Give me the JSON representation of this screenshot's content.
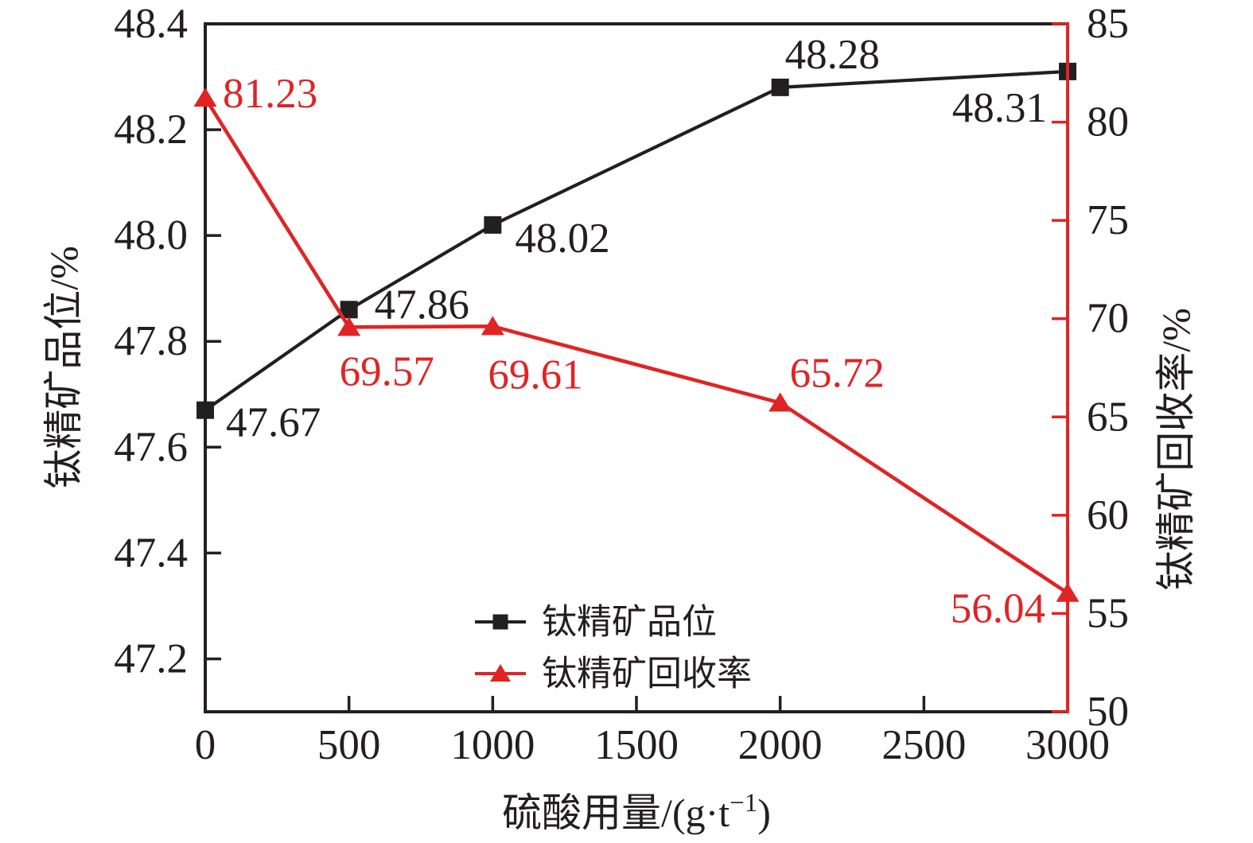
{
  "chart_data": {
    "type": "line",
    "title": "",
    "xlabel_parts": {
      "pre": "硫酸用量/(g·t",
      "sup": "−1",
      "post": ")"
    },
    "ylabel_left": "钛精矿品位/%",
    "ylabel_right": "钛精矿回收率/%",
    "x_axis": {
      "range": [
        0,
        3000
      ],
      "tick_values": [
        0,
        500,
        1000,
        1500,
        2000,
        2500,
        3000
      ],
      "tick_labels": [
        "0",
        "500",
        "1000",
        "1500",
        "2000",
        "2500",
        "3000"
      ]
    },
    "left_axis": {
      "range": [
        47.1,
        48.4
      ],
      "tick_values": [
        48.4,
        48.2,
        48.0,
        47.8,
        47.6,
        47.4,
        47.2
      ],
      "tick_labels": [
        "48.4",
        "48.2",
        "48.0",
        "47.8",
        "47.6",
        "47.4",
        "47.2"
      ]
    },
    "right_axis": {
      "range": [
        50,
        85
      ],
      "tick_values": [
        85,
        80,
        75,
        70,
        65,
        60,
        55,
        50
      ],
      "tick_labels": [
        "85",
        "80",
        "75",
        "70",
        "65",
        "60",
        "55",
        "50"
      ]
    },
    "x_values": [
      0,
      500,
      1000,
      2000,
      3000
    ],
    "series": [
      {
        "name": "钛精矿品位",
        "axis": "left",
        "color": "#231f20",
        "marker": "square",
        "line_width": 4.2,
        "values": [
          47.67,
          47.86,
          48.02,
          48.28,
          48.31
        ],
        "point_labels": [
          {
            "text": "47.67",
            "anchor": "start",
            "dx": 26,
            "dy": 16
          },
          {
            "text": "47.86",
            "anchor": "start",
            "dx": 32,
            "dy": -6
          },
          {
            "text": "48.02",
            "anchor": "start",
            "dx": 28,
            "dy": 17
          },
          {
            "text": "48.28",
            "anchor": "start",
            "dx": 6,
            "dy": -41
          },
          {
            "text": "48.31",
            "anchor": "end",
            "dx": -26,
            "dy": 46
          }
        ]
      },
      {
        "name": "钛精矿回收率",
        "axis": "right",
        "color": "#e02424",
        "marker": "triangle-up",
        "line_width": 4.6,
        "values": [
          81.23,
          69.57,
          69.61,
          65.72,
          56.04
        ],
        "point_labels": [
          {
            "text": "81.23",
            "anchor": "start",
            "dx": 22,
            "dy": -5
          },
          {
            "text": "69.57",
            "anchor": "start",
            "dx": -12,
            "dy": 56
          },
          {
            "text": "69.61",
            "anchor": "start",
            "dx": -6,
            "dy": 61
          },
          {
            "text": "65.72",
            "anchor": "start",
            "dx": 12,
            "dy": -37
          },
          {
            "text": "56.04",
            "anchor": "end",
            "dx": -28,
            "dy": 20
          }
        ]
      }
    ],
    "legend": {
      "position": "inside-bottom-center",
      "items": [
        "钛精矿品位",
        "钛精矿回收率"
      ]
    },
    "grid": "off"
  }
}
